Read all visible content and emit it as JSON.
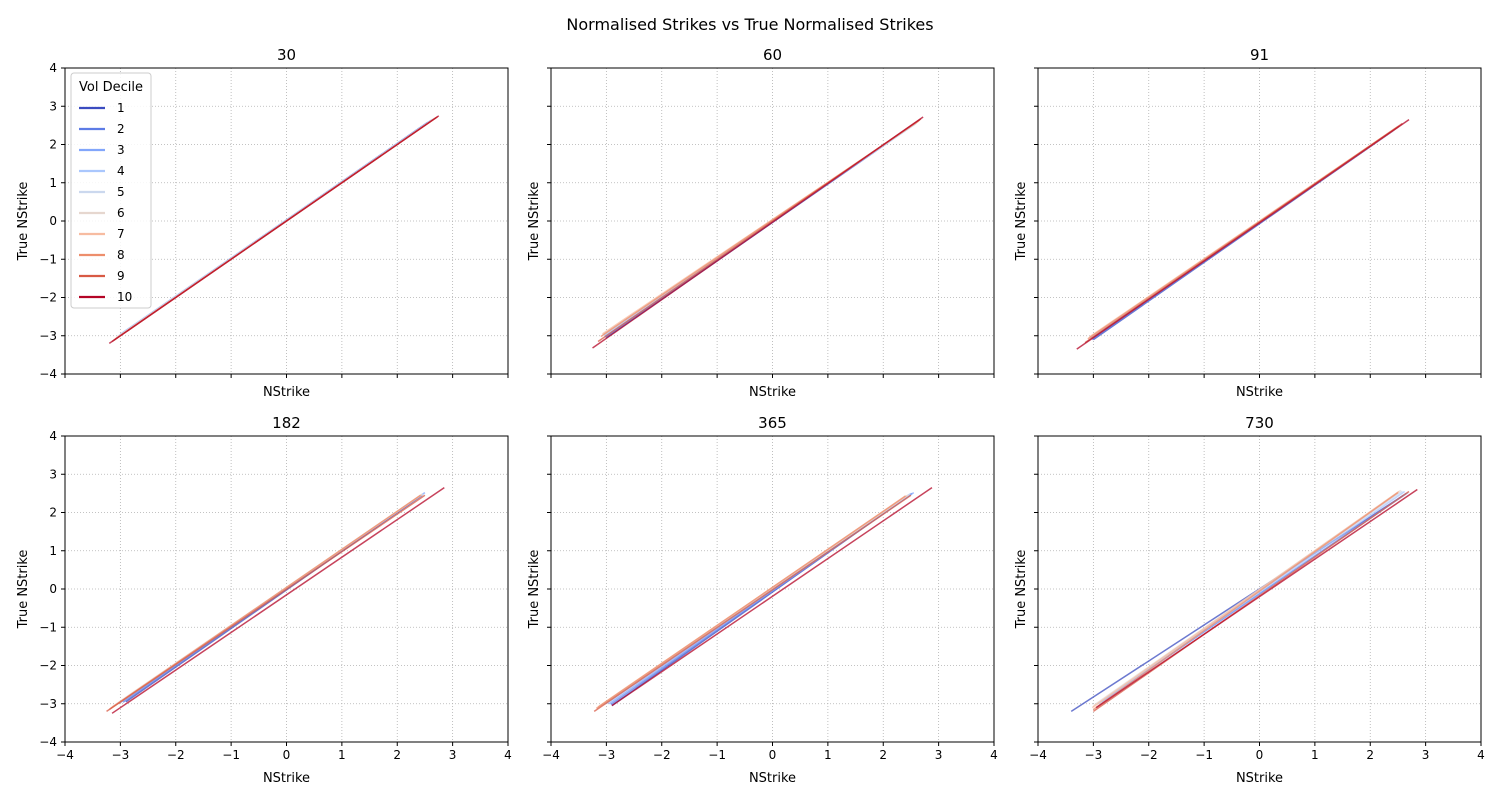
{
  "figure": {
    "title": "Normalised Strikes vs True Normalised Strikes"
  },
  "legend": {
    "title": "Vol Decile",
    "placement": "upper-left of first subplot",
    "entries": [
      {
        "label": "1",
        "color": "#3b4cc0"
      },
      {
        "label": "2",
        "color": "#5d7ce6"
      },
      {
        "label": "3",
        "color": "#82a6fb"
      },
      {
        "label": "4",
        "color": "#aac7fd"
      },
      {
        "label": "5",
        "color": "#cbd8ee"
      },
      {
        "label": "6",
        "color": "#e6d7cf"
      },
      {
        "label": "7",
        "color": "#f7bca1"
      },
      {
        "label": "8",
        "color": "#ed8e6c"
      },
      {
        "label": "9",
        "color": "#d85a44"
      },
      {
        "label": "10",
        "color": "#b40426"
      }
    ]
  },
  "chart_data": [
    {
      "type": "line",
      "title": "30",
      "xlabel": "NStrike",
      "ylabel": "True NStrike",
      "xlim": [
        -4,
        4
      ],
      "ylim": [
        -4,
        4
      ],
      "grid": true,
      "xticks": [
        -4,
        -3,
        -2,
        -1,
        0,
        1,
        2,
        3,
        4
      ],
      "yticks": [
        -4,
        -3,
        -2,
        -1,
        0,
        1,
        2,
        3,
        4
      ],
      "show_xticklabels": false,
      "show_yticklabels": true,
      "series": [
        {
          "name": "1",
          "x": [
            -2.9,
            2.55
          ],
          "y": [
            -2.88,
            2.58
          ]
        },
        {
          "name": "2",
          "x": [
            -2.95,
            2.6
          ],
          "y": [
            -2.92,
            2.62
          ]
        },
        {
          "name": "3",
          "x": [
            -3.0,
            2.62
          ],
          "y": [
            -2.96,
            2.64
          ]
        },
        {
          "name": "4",
          "x": [
            -3.02,
            2.64
          ],
          "y": [
            -2.99,
            2.66
          ]
        },
        {
          "name": "5",
          "x": [
            -3.05,
            2.66
          ],
          "y": [
            -3.02,
            2.67
          ]
        },
        {
          "name": "6",
          "x": [
            -3.08,
            2.68
          ],
          "y": [
            -3.06,
            2.69
          ]
        },
        {
          "name": "7",
          "x": [
            -3.1,
            2.7
          ],
          "y": [
            -3.09,
            2.7
          ]
        },
        {
          "name": "8",
          "x": [
            -3.12,
            2.71
          ],
          "y": [
            -3.12,
            2.71
          ]
        },
        {
          "name": "9",
          "x": [
            -3.15,
            2.73
          ],
          "y": [
            -3.15,
            2.73
          ]
        },
        {
          "name": "10",
          "x": [
            -3.2,
            2.75
          ],
          "y": [
            -3.2,
            2.75
          ]
        }
      ]
    },
    {
      "type": "line",
      "title": "60",
      "xlabel": "NStrike",
      "ylabel": "True NStrike",
      "xlim": [
        -4,
        4
      ],
      "ylim": [
        -4,
        4
      ],
      "grid": true,
      "xticks": [
        -4,
        -3,
        -2,
        -1,
        0,
        1,
        2,
        3,
        4
      ],
      "yticks": [
        -4,
        -3,
        -2,
        -1,
        0,
        1,
        2,
        3,
        4
      ],
      "show_xticklabels": false,
      "show_yticklabels": false,
      "series": [
        {
          "name": "1",
          "x": [
            -3.0,
            2.5
          ],
          "y": [
            -3.05,
            2.47
          ]
        },
        {
          "name": "2",
          "x": [
            -3.02,
            2.52
          ],
          "y": [
            -3.04,
            2.49
          ]
        },
        {
          "name": "3",
          "x": [
            -3.03,
            2.55
          ],
          "y": [
            -3.02,
            2.52
          ]
        },
        {
          "name": "4",
          "x": [
            -3.04,
            2.58
          ],
          "y": [
            -3.0,
            2.54
          ]
        },
        {
          "name": "5",
          "x": [
            -3.05,
            2.6
          ],
          "y": [
            -2.98,
            2.56
          ]
        },
        {
          "name": "6",
          "x": [
            -3.06,
            2.62
          ],
          "y": [
            -2.97,
            2.59
          ]
        },
        {
          "name": "7",
          "x": [
            -3.07,
            2.64
          ],
          "y": [
            -2.95,
            2.61
          ]
        },
        {
          "name": "8",
          "x": [
            -3.1,
            2.66
          ],
          "y": [
            -3.02,
            2.64
          ]
        },
        {
          "name": "9",
          "x": [
            -3.15,
            2.68
          ],
          "y": [
            -3.15,
            2.67
          ]
        },
        {
          "name": "10",
          "x": [
            -3.25,
            2.72
          ],
          "y": [
            -3.32,
            2.72
          ]
        }
      ]
    },
    {
      "type": "line",
      "title": "91",
      "xlabel": "NStrike",
      "ylabel": "True NStrike",
      "xlim": [
        -4,
        4
      ],
      "ylim": [
        -4,
        4
      ],
      "grid": true,
      "xticks": [
        -4,
        -3,
        -2,
        -1,
        0,
        1,
        2,
        3,
        4
      ],
      "yticks": [
        -4,
        -3,
        -2,
        -1,
        0,
        1,
        2,
        3,
        4
      ],
      "show_xticklabels": false,
      "show_yticklabels": false,
      "series": [
        {
          "name": "1",
          "x": [
            -3.0,
            2.4
          ],
          "y": [
            -3.1,
            2.35
          ]
        },
        {
          "name": "2",
          "x": [
            -3.02,
            2.42
          ],
          "y": [
            -3.1,
            2.37
          ]
        },
        {
          "name": "3",
          "x": [
            -3.03,
            2.44
          ],
          "y": [
            -3.08,
            2.39
          ]
        },
        {
          "name": "4",
          "x": [
            -3.04,
            2.46
          ],
          "y": [
            -3.06,
            2.41
          ]
        },
        {
          "name": "5",
          "x": [
            -3.05,
            2.48
          ],
          "y": [
            -3.05,
            2.43
          ]
        },
        {
          "name": "6",
          "x": [
            -3.06,
            2.5
          ],
          "y": [
            -3.04,
            2.45
          ]
        },
        {
          "name": "7",
          "x": [
            -3.07,
            2.5
          ],
          "y": [
            -3.03,
            2.47
          ]
        },
        {
          "name": "8",
          "x": [
            -3.1,
            2.52
          ],
          "y": [
            -3.08,
            2.48
          ]
        },
        {
          "name": "9",
          "x": [
            -3.15,
            2.58
          ],
          "y": [
            -3.18,
            2.55
          ]
        },
        {
          "name": "10",
          "x": [
            -3.3,
            2.7
          ],
          "y": [
            -3.35,
            2.65
          ]
        }
      ]
    },
    {
      "type": "line",
      "title": "182",
      "xlabel": "NStrike",
      "ylabel": "True NStrike",
      "xlim": [
        -4,
        4
      ],
      "ylim": [
        -4,
        4
      ],
      "grid": true,
      "xticks": [
        -4,
        -3,
        -2,
        -1,
        0,
        1,
        2,
        3,
        4
      ],
      "yticks": [
        -4,
        -3,
        -2,
        -1,
        0,
        1,
        2,
        3,
        4
      ],
      "show_xticklabels": true,
      "show_yticklabels": true,
      "series": [
        {
          "name": "1",
          "x": [
            -2.9,
            2.45
          ],
          "y": [
            -2.95,
            2.45
          ]
        },
        {
          "name": "2",
          "x": [
            -2.95,
            2.48
          ],
          "y": [
            -2.96,
            2.5
          ]
        },
        {
          "name": "3",
          "x": [
            -3.0,
            2.5
          ],
          "y": [
            -2.97,
            2.52
          ]
        },
        {
          "name": "4",
          "x": [
            -3.05,
            2.48
          ],
          "y": [
            -3.0,
            2.5
          ]
        },
        {
          "name": "5",
          "x": [
            -3.1,
            2.47
          ],
          "y": [
            -3.04,
            2.49
          ]
        },
        {
          "name": "6",
          "x": [
            -3.15,
            2.45
          ],
          "y": [
            -3.08,
            2.48
          ]
        },
        {
          "name": "7",
          "x": [
            -3.18,
            2.44
          ],
          "y": [
            -3.12,
            2.46
          ]
        },
        {
          "name": "8",
          "x": [
            -3.2,
            2.42
          ],
          "y": [
            -3.15,
            2.45
          ]
        },
        {
          "name": "9",
          "x": [
            -3.25,
            2.5
          ],
          "y": [
            -3.2,
            2.45
          ]
        },
        {
          "name": "10",
          "x": [
            -3.15,
            2.85
          ],
          "y": [
            -3.25,
            2.65
          ]
        }
      ]
    },
    {
      "type": "line",
      "title": "365",
      "xlabel": "NStrike",
      "ylabel": "True NStrike",
      "xlim": [
        -4,
        4
      ],
      "ylim": [
        -4,
        4
      ],
      "grid": true,
      "xticks": [
        -4,
        -3,
        -2,
        -1,
        0,
        1,
        2,
        3,
        4
      ],
      "yticks": [
        -4,
        -3,
        -2,
        -1,
        0,
        1,
        2,
        3,
        4
      ],
      "show_xticklabels": true,
      "show_yticklabels": false,
      "series": [
        {
          "name": "1",
          "x": [
            -2.9,
            2.5
          ],
          "y": [
            -3.05,
            2.48
          ]
        },
        {
          "name": "2",
          "x": [
            -2.92,
            2.52
          ],
          "y": [
            -3.02,
            2.5
          ]
        },
        {
          "name": "3",
          "x": [
            -2.95,
            2.55
          ],
          "y": [
            -3.0,
            2.52
          ]
        },
        {
          "name": "4",
          "x": [
            -3.0,
            2.5
          ],
          "y": [
            -3.0,
            2.5
          ]
        },
        {
          "name": "5",
          "x": [
            -3.05,
            2.48
          ],
          "y": [
            -3.02,
            2.48
          ]
        },
        {
          "name": "6",
          "x": [
            -3.1,
            2.45
          ],
          "y": [
            -3.05,
            2.46
          ]
        },
        {
          "name": "7",
          "x": [
            -3.15,
            2.42
          ],
          "y": [
            -3.08,
            2.44
          ]
        },
        {
          "name": "8",
          "x": [
            -3.18,
            2.4
          ],
          "y": [
            -3.12,
            2.43
          ]
        },
        {
          "name": "9",
          "x": [
            -3.22,
            2.5
          ],
          "y": [
            -3.2,
            2.45
          ]
        },
        {
          "name": "10",
          "x": [
            -2.9,
            2.88
          ],
          "y": [
            -3.05,
            2.65
          ]
        }
      ]
    },
    {
      "type": "line",
      "title": "730",
      "xlabel": "NStrike",
      "ylabel": "True NStrike",
      "xlim": [
        -4,
        4
      ],
      "ylim": [
        -4,
        4
      ],
      "grid": true,
      "xticks": [
        -4,
        -3,
        -2,
        -1,
        0,
        1,
        2,
        3,
        4
      ],
      "yticks": [
        -4,
        -3,
        -2,
        -1,
        0,
        1,
        2,
        3,
        4
      ],
      "show_xticklabels": true,
      "show_yticklabels": false,
      "series": [
        {
          "name": "1",
          "x": [
            -3.4,
            2.6
          ],
          "y": [
            -3.2,
            2.45
          ]
        },
        {
          "name": "2",
          "x": [
            -2.8,
            2.65
          ],
          "y": [
            -2.9,
            2.5
          ]
        },
        {
          "name": "3",
          "x": [
            -2.85,
            2.68
          ],
          "y": [
            -2.95,
            2.52
          ]
        },
        {
          "name": "4",
          "x": [
            -2.9,
            2.62
          ],
          "y": [
            -3.0,
            2.55
          ]
        },
        {
          "name": "5",
          "x": [
            -2.95,
            2.58
          ],
          "y": [
            -3.02,
            2.56
          ]
        },
        {
          "name": "6",
          "x": [
            -3.0,
            2.55
          ],
          "y": [
            -3.05,
            2.58
          ]
        },
        {
          "name": "7",
          "x": [
            -3.02,
            2.52
          ],
          "y": [
            -3.1,
            2.55
          ]
        },
        {
          "name": "8",
          "x": [
            -3.0,
            2.5
          ],
          "y": [
            -3.15,
            2.52
          ]
        },
        {
          "name": "9",
          "x": [
            -3.0,
            2.7
          ],
          "y": [
            -3.2,
            2.55
          ]
        },
        {
          "name": "10",
          "x": [
            -2.95,
            2.85
          ],
          "y": [
            -3.1,
            2.6
          ]
        }
      ]
    }
  ]
}
